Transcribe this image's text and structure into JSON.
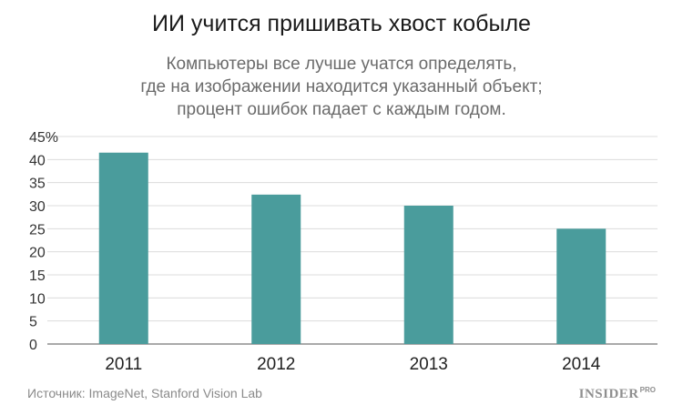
{
  "chart_data": {
    "type": "bar",
    "title": "ИИ учится пришивать хвост кобыле",
    "subtitle": [
      "Компьютеры все лучше учатся определять,",
      "где на изображении находится указанный объект;",
      "процент ошибок падает с каждым годом."
    ],
    "categories": [
      "2011",
      "2012",
      "2013",
      "2014"
    ],
    "values": [
      41.5,
      32.4,
      30.0,
      25.0
    ],
    "ylim": [
      0,
      45
    ],
    "y_ticks": [
      "0",
      "5",
      "10",
      "15",
      "20",
      "25",
      "30",
      "35",
      "40",
      "45%"
    ],
    "grid": true,
    "bar_color": "#4a9c9c",
    "grid_color": "#dcdcdc",
    "xlabel": "",
    "ylabel": ""
  },
  "footer": {
    "source": "Источник: ImageNet, Stanford Vision Lab",
    "brand": "INSIDER",
    "brand_suffix": "PRO"
  }
}
